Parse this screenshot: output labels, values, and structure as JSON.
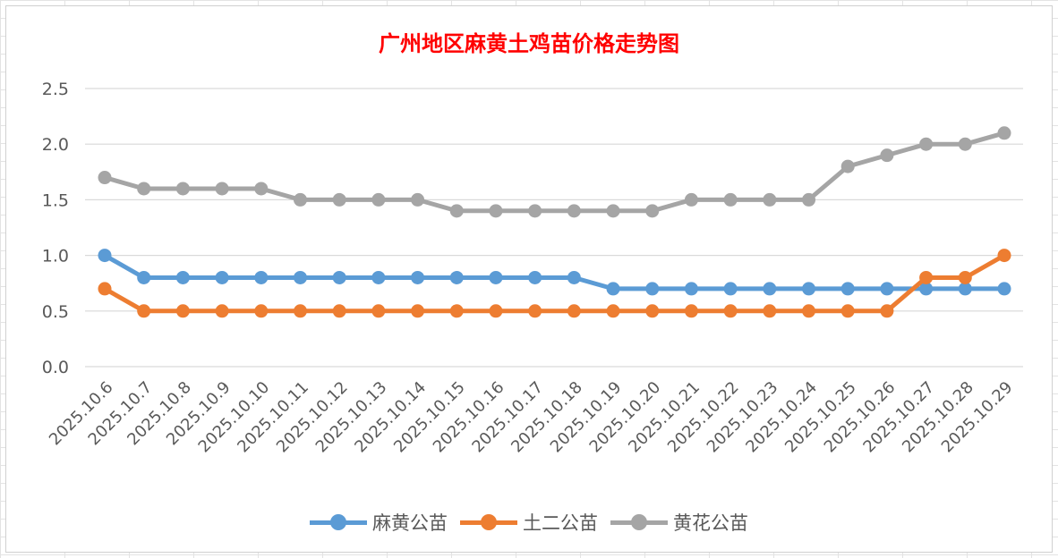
{
  "chart_data": {
    "type": "line",
    "title": "广州地区麻黄土鸡苗价格走势图",
    "xlabel": "",
    "ylabel": "",
    "ylim": [
      0,
      2.5
    ],
    "yticks": [
      "0.0",
      "0.5",
      "1.0",
      "1.5",
      "2.0",
      "2.5"
    ],
    "grid": "horizontal",
    "legend_position": "bottom",
    "categories": [
      "2025.10.6",
      "2025.10.7",
      "2025.10.8",
      "2025.10.9",
      "2025.10.10",
      "2025.10.11",
      "2025.10.12",
      "2025.10.13",
      "2025.10.14",
      "2025.10.15",
      "2025.10.16",
      "2025.10.17",
      "2025.10.18",
      "2025.10.19",
      "2025.10.20",
      "2025.10.21",
      "2025.10.22",
      "2025.10.23",
      "2025.10.24",
      "2025.10.25",
      "2025.10.26",
      "2025.10.27",
      "2025.10.28",
      "2025.10.29"
    ],
    "series": [
      {
        "name": "麻黄公苗",
        "color": "#5b9bd5",
        "values": [
          1.0,
          0.8,
          0.8,
          0.8,
          0.8,
          0.8,
          0.8,
          0.8,
          0.8,
          0.8,
          0.8,
          0.8,
          0.8,
          0.7,
          0.7,
          0.7,
          0.7,
          0.7,
          0.7,
          0.7,
          0.7,
          0.7,
          0.7,
          0.7
        ]
      },
      {
        "name": "土二公苗",
        "color": "#ed7d31",
        "values": [
          0.7,
          0.5,
          0.5,
          0.5,
          0.5,
          0.5,
          0.5,
          0.5,
          0.5,
          0.5,
          0.5,
          0.5,
          0.5,
          0.5,
          0.5,
          0.5,
          0.5,
          0.5,
          0.5,
          0.5,
          0.5,
          0.8,
          0.8,
          1.0
        ]
      },
      {
        "name": "黄花公苗",
        "color": "#a5a5a5",
        "values": [
          1.7,
          1.6,
          1.6,
          1.6,
          1.6,
          1.5,
          1.5,
          1.5,
          1.5,
          1.4,
          1.4,
          1.4,
          1.4,
          1.4,
          1.4,
          1.5,
          1.5,
          1.5,
          1.5,
          1.8,
          1.9,
          2.0,
          2.0,
          2.1
        ]
      }
    ]
  }
}
